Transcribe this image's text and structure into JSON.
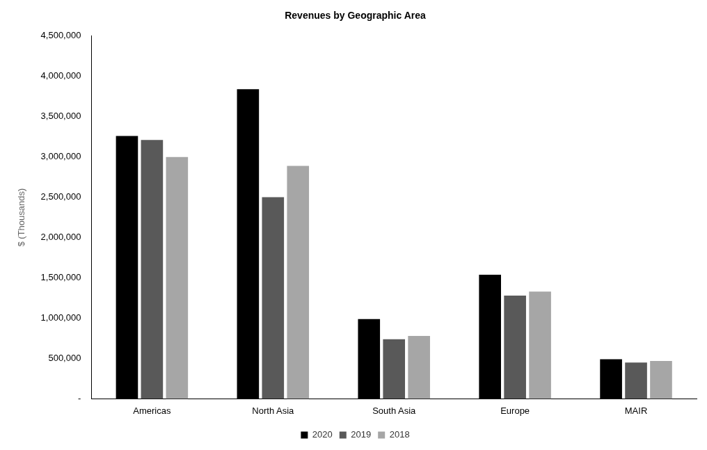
{
  "chart_data": {
    "type": "bar",
    "title": "Revenues by Geographic Area",
    "ylabel": "$ (Thousands)",
    "categories": [
      "Americas",
      "North Asia",
      "South Asia",
      "Europe",
      "MAIR"
    ],
    "series": [
      {
        "name": "2020",
        "color": "#000000",
        "values": [
          3260000,
          3840000,
          990000,
          1540000,
          490000
        ]
      },
      {
        "name": "2019",
        "color": "#595959",
        "values": [
          3210000,
          2500000,
          740000,
          1280000,
          450000
        ]
      },
      {
        "name": "2018",
        "color": "#a6a6a6",
        "values": [
          3000000,
          2890000,
          780000,
          1330000,
          470000
        ]
      }
    ],
    "ylim": [
      0,
      4500000
    ],
    "yticks": [
      {
        "value": 0,
        "label": "-"
      },
      {
        "value": 500000,
        "label": "500,000"
      },
      {
        "value": 1000000,
        "label": "1,000,000"
      },
      {
        "value": 1500000,
        "label": "1,500,000"
      },
      {
        "value": 2000000,
        "label": "2,000,000"
      },
      {
        "value": 2500000,
        "label": "2,500,000"
      },
      {
        "value": 3000000,
        "label": "3,000,000"
      },
      {
        "value": 3500000,
        "label": "3,500,000"
      },
      {
        "value": 4000000,
        "label": "4,000,000"
      },
      {
        "value": 4500000,
        "label": "4,500,000"
      }
    ],
    "grid": false,
    "legend": "bottom"
  }
}
